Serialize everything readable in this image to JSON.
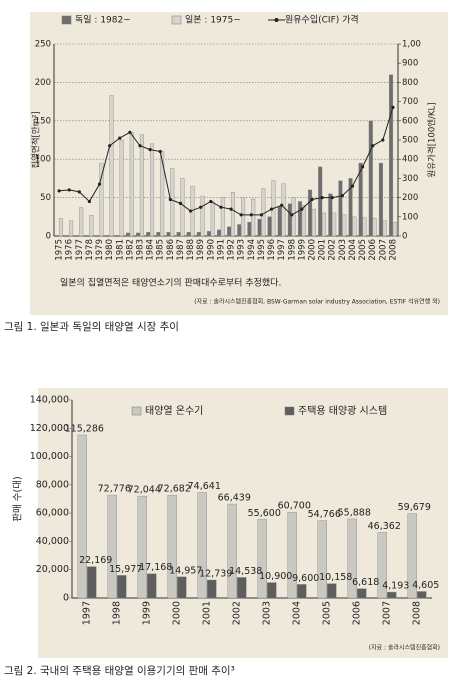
{
  "chart_data": [
    {
      "type": "bar",
      "series": [
        {
          "name": "독일 : 1982~",
          "color": "#6e6e6e",
          "values": [
            null,
            null,
            null,
            null,
            null,
            null,
            null,
            4,
            4,
            5,
            5,
            5,
            5,
            5,
            5,
            6,
            8,
            12,
            15,
            18,
            22,
            25,
            38,
            42,
            45,
            60,
            90,
            55,
            72,
            75,
            95,
            150,
            95,
            210
          ]
        },
        {
          "name": "일본 : 1975~",
          "color": "#d6d4cc",
          "values": [
            23,
            20,
            37,
            27,
            95,
            183,
            125,
            135,
            132,
            120,
            110,
            88,
            75,
            65,
            52,
            45,
            50,
            57,
            50,
            48,
            62,
            72,
            68,
            50,
            40,
            35,
            30,
            30,
            28,
            25,
            24,
            23,
            20,
            18
          ]
        },
        {
          "name": "원유수입(CIF) 가격",
          "color": "#222222",
          "type": "line",
          "axis": "y2",
          "values": [
            235,
            240,
            230,
            180,
            270,
            470,
            510,
            540,
            470,
            450,
            440,
            190,
            170,
            130,
            150,
            180,
            150,
            140,
            110,
            110,
            110,
            140,
            160,
            110,
            140,
            190,
            200,
            200,
            210,
            260,
            360,
            470,
            500,
            670
          ]
        }
      ],
      "categories": [
        "1975",
        "1976",
        "1977",
        "1978",
        "1979",
        "1980",
        "1981",
        "1982",
        "1983",
        "1984",
        "1985",
        "1986",
        "1987",
        "1988",
        "1989",
        "1990",
        "1991",
        "1992",
        "1993",
        "1994",
        "1995",
        "1996",
        "1997",
        "1998",
        "1999",
        "2000",
        "2001",
        "2002",
        "2003",
        "2004",
        "2005",
        "2006",
        "2007",
        "2008"
      ],
      "ylim": [
        0,
        250
      ],
      "yticks": [
        0,
        50,
        100,
        150,
        200,
        250
      ],
      "y2lim": [
        0,
        1000
      ],
      "y2ticks": [
        0,
        100,
        200,
        300,
        400,
        500,
        600,
        700,
        800,
        900,
        {
          "value": 1000,
          "label": "1,00"
        }
      ],
      "ylabel": "집열면적[만m²]",
      "y2label": "원유가격[100엔/KL]",
      "grid": true,
      "note": "일본의 집열면적은 태양연소기의 판매대수로부터 추정했다.",
      "source": "(자료 : 솔라시스템진흥협회, BSW-Garman solar industry Association, ESTIF 석유연행 외)",
      "caption": "그림 1. 일본과 독일의 태양열 시장 추이"
    },
    {
      "type": "bar",
      "series": [
        {
          "name": "태양열 온수기",
          "color": "#c9c9c2",
          "values": [
            115286,
            72776,
            72044,
            72682,
            74641,
            66439,
            55600,
            60700,
            54766,
            55888,
            46362,
            59679
          ],
          "value_labels": [
            "115,286",
            "72,776",
            "72,044",
            "72,682",
            "74,641",
            "66,439",
            "55,600",
            "60,700",
            "54,766",
            "55,888",
            "46,362",
            "59,679"
          ]
        },
        {
          "name": "주택용 태양광 시스템",
          "color": "#5e5e5e",
          "values": [
            22169,
            15977,
            17168,
            14957,
            12739,
            14538,
            10900,
            9600,
            10158,
            6618,
            4193,
            4605
          ],
          "value_labels": [
            "22,169",
            "15,977",
            "17,168",
            "14,957",
            "12,739",
            "14,538",
            "10,900",
            "9,600",
            "10,158",
            "6,618",
            "4,193",
            "4,605"
          ]
        }
      ],
      "categories": [
        "1997",
        "1998",
        "1999",
        "2000",
        "2001",
        "2002",
        "2003",
        "2004",
        "2005",
        "2006",
        "2007",
        "2008"
      ],
      "ylim": [
        0,
        140000
      ],
      "yticks": [
        0,
        {
          "value": 20000,
          "label": "20,000"
        },
        {
          "value": 40000,
          "label": "40,000"
        },
        {
          "value": 60000,
          "label": "60,000"
        },
        {
          "value": 80000,
          "label": "80,000"
        },
        {
          "value": 100000,
          "label": "100,000"
        },
        {
          "value": 120000,
          "label": "120,000"
        },
        {
          "value": 140000,
          "label": "140,000"
        }
      ],
      "ylabel": "판매 수(대)",
      "grid": false,
      "source": "(자료 : 솔라시스템진흥협회)",
      "caption": "그림 2. 국내의 주택용 태양열 이용기기의 판매 추이³"
    }
  ]
}
